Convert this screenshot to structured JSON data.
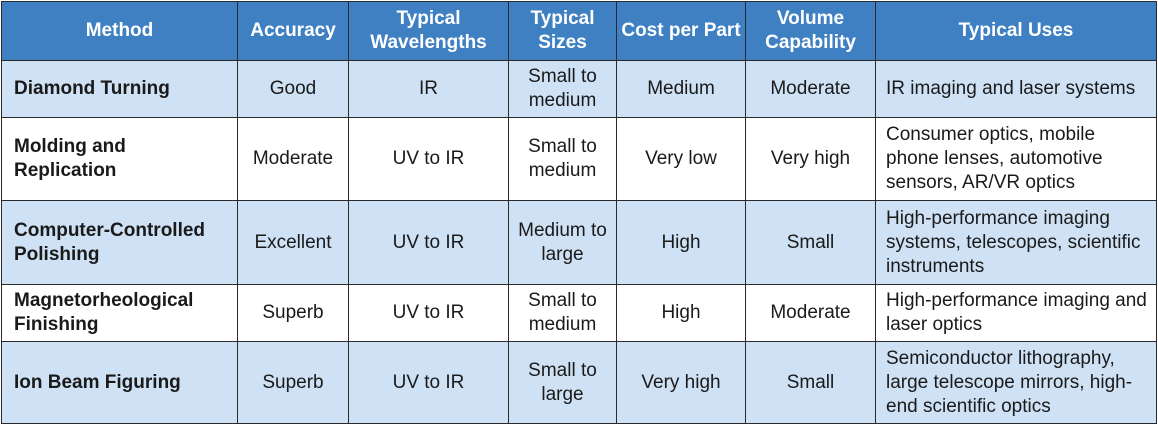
{
  "table": {
    "header": [
      "Method",
      "Accuracy",
      "Typical Wavelengths",
      "Typical Sizes",
      "Cost per Part",
      "Volume Capability",
      "Typical Uses"
    ],
    "rows": [
      [
        "Diamond Turning",
        "Good",
        "IR",
        "Small to medium",
        "Medium",
        "Moderate",
        "IR imaging and laser systems"
      ],
      [
        "Molding and Replication",
        "Moderate",
        "UV to IR",
        "Small to medium",
        "Very low",
        "Very high",
        "Consumer optics, mobile phone lenses, automotive sensors, AR/VR optics"
      ],
      [
        "Computer-Controlled Polishing",
        "Excellent",
        "UV to IR",
        "Medium to large",
        "High",
        "Small",
        "High-performance imaging systems, telescopes, scientific instruments"
      ],
      [
        "Magnetorheological Finishing",
        "Superb",
        "UV to IR",
        "Small to medium",
        "High",
        "Moderate",
        "High-performance imaging and laser optics"
      ],
      [
        "Ion Beam Figuring",
        "Superb",
        "UV to IR",
        "Small to large",
        "Very high",
        "Small",
        "Semiconductor lithography, large telescope mirrors, high-end scientific optics"
      ]
    ]
  }
}
